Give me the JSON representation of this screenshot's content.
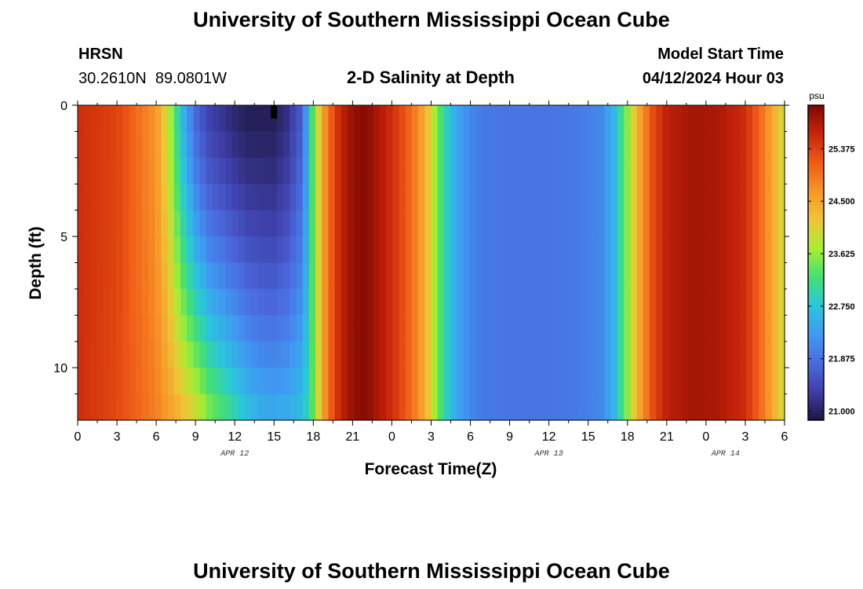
{
  "page": {
    "title": "University of Southern Mississippi Ocean Cube",
    "footer_title": "University of Southern Mississippi Ocean Cube",
    "station_code": "HRSN",
    "station_coords": "30.2610N  89.0801W",
    "subtitle": "2-D Salinity at Depth",
    "model_start_label": "Model Start Time",
    "model_start_value": "04/12/2024 Hour 03"
  },
  "chart_data": {
    "type": "heatmap",
    "title": "2-D Salinity at Depth",
    "xlabel": "Forecast Time(Z)",
    "ylabel": "Depth (ft)",
    "x_tick_labels": [
      "0",
      "3",
      "6",
      "9",
      "12",
      "15",
      "18",
      "21",
      "0",
      "3",
      "6",
      "9",
      "12",
      "15",
      "18",
      "21",
      "0",
      "3",
      "6"
    ],
    "x_date_labels": [
      {
        "label": "APR 12",
        "under_tick": 4
      },
      {
        "label": "APR 13",
        "under_tick": 12
      },
      {
        "label": "APR 14",
        "under_tick": 16.5
      }
    ],
    "x_range_hours": [
      0,
      54
    ],
    "y_tick_labels": [
      "0",
      "5",
      "10"
    ],
    "y_range_ft": [
      0,
      12
    ],
    "colorbar": {
      "unit": "psu",
      "min": 20.85,
      "max": 26.1,
      "ticks": [
        "25.375",
        "24.500",
        "23.625",
        "22.750",
        "21.875",
        "21.000"
      ],
      "colors": [
        "#1e1640",
        "#3e3fa8",
        "#4b6be0",
        "#3f9af2",
        "#29c7dc",
        "#44e070",
        "#a8ee32",
        "#f0c436",
        "#f79628",
        "#ee5a16",
        "#c8250a",
        "#7e0802"
      ]
    },
    "salinity_profile": {
      "time_hours": [
        0,
        3,
        6,
        7,
        8,
        9,
        10,
        12,
        13,
        14,
        15,
        16,
        17,
        17.5,
        18,
        19,
        20,
        21,
        22,
        23,
        24,
        25,
        26,
        26.8,
        27.4,
        28,
        29,
        30,
        31,
        33,
        36,
        38,
        40,
        41,
        42,
        43,
        44,
        45,
        47,
        48,
        49,
        51,
        52.5,
        53.5,
        54
      ],
      "surface_psu": [
        25.55,
        25.35,
        24.65,
        23.8,
        22.6,
        21.75,
        21.35,
        21.05,
        20.95,
        20.95,
        20.95,
        21.15,
        21.6,
        22.3,
        23.4,
        24.85,
        25.6,
        25.95,
        26.05,
        25.8,
        25.55,
        25.2,
        24.75,
        24.2,
        23.6,
        23.0,
        22.4,
        22.1,
        21.95,
        21.9,
        21.9,
        21.95,
        22.1,
        22.6,
        23.6,
        24.6,
        25.3,
        25.7,
        25.85,
        25.85,
        25.8,
        25.55,
        24.85,
        24.2,
        23.9
      ],
      "bottom_psu": [
        25.55,
        25.3,
        24.85,
        24.6,
        24.35,
        24.05,
        23.6,
        23.05,
        22.75,
        22.55,
        22.5,
        22.55,
        22.7,
        22.9,
        23.4,
        24.85,
        25.6,
        25.95,
        26.05,
        25.8,
        25.55,
        25.2,
        24.75,
        24.2,
        23.6,
        23.0,
        22.4,
        22.1,
        21.95,
        21.9,
        21.9,
        21.95,
        22.1,
        22.6,
        23.6,
        24.6,
        25.3,
        25.7,
        25.85,
        25.85,
        25.8,
        25.55,
        24.85,
        24.2,
        23.9
      ]
    },
    "marker": {
      "time_hour": 15,
      "depth_ft": 0
    }
  }
}
